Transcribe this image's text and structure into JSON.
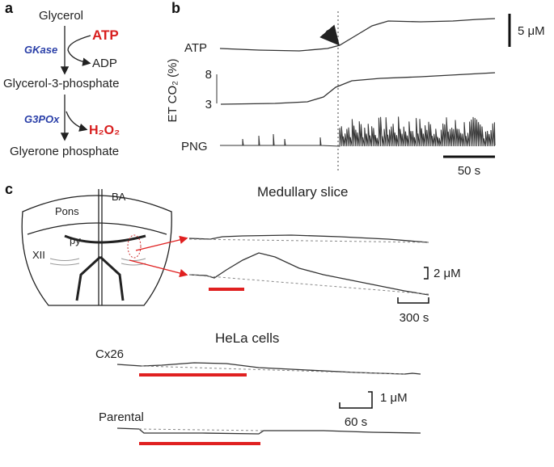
{
  "panel_a": {
    "label": "a",
    "glycerol": "Glycerol",
    "atp": "ATP",
    "gkase": "GKase",
    "adp": "ADP",
    "g3p": "Glycerol-3-phosphate",
    "g3pox": "G3POx",
    "h2o2": "H₂O₂",
    "glycerone": "Glyerone phosphate"
  },
  "panel_b": {
    "label": "b",
    "scale_conc": "5 μM",
    "atp": "ATP",
    "etco2": "ET CO₂ (%)",
    "etco2_ticks": [
      8,
      3
    ],
    "png": "PNG",
    "scale_time": "50 s"
  },
  "panel_c": {
    "label": "c",
    "pons": "Pons",
    "ba": "BA",
    "py": "py",
    "xii": "XII",
    "slice_title": "Medullary slice",
    "slice_scale_conc": "2 μM",
    "slice_scale_time": "300 s",
    "hela_title": "HeLa cells",
    "cx26": "Cx26",
    "hela_scale_conc": "1 μM",
    "parental": "Parental",
    "hela_scale_time": "60 s"
  }
}
